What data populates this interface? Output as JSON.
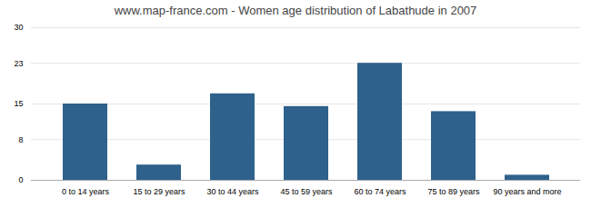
{
  "chart_data": {
    "type": "bar",
    "title": "www.map-france.com - Women age distribution of Labathude in 2007",
    "categories": [
      "0 to 14 years",
      "15 to 29 years",
      "30 to 44 years",
      "45 to 59 years",
      "60 to 74 years",
      "75 to 89 years",
      "90 years and more"
    ],
    "values": [
      15,
      3,
      17,
      14.5,
      23,
      13.5,
      1
    ],
    "color": "#2e618c",
    "ylim": [
      0,
      30
    ],
    "yticks": [
      0,
      8,
      15,
      23,
      30
    ],
    "grid": true
  }
}
